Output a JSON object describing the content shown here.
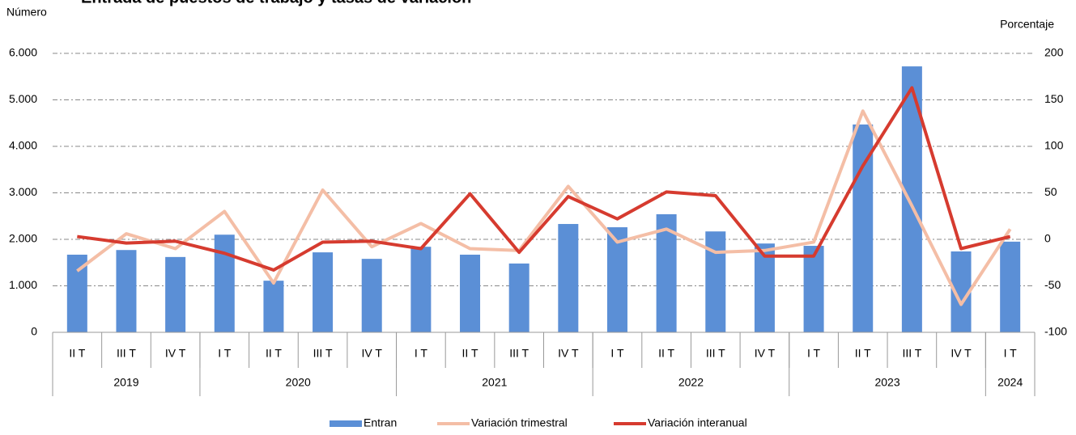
{
  "chart_data": {
    "type": "bar_line",
    "title": "Entrada de puestos de trabajo y tasas de variación",
    "y_label": "Número",
    "y2_label": "Porcentaje",
    "categories": [
      "II T",
      "III T",
      "IV T",
      "I T",
      "II T",
      "III T",
      "IV T",
      "I T",
      "II T",
      "III T",
      "IV T",
      "I T",
      "II T",
      "III T",
      "IV T",
      "I T",
      "II T",
      "III T",
      "IV T",
      "I T"
    ],
    "groups": [
      {
        "label": "2019",
        "count": 3
      },
      {
        "label": "2020",
        "count": 4
      },
      {
        "label": "2021",
        "count": 4
      },
      {
        "label": "2022",
        "count": 4
      },
      {
        "label": "2023",
        "count": 4
      },
      {
        "label": "2024",
        "count": 1
      }
    ],
    "series": [
      {
        "name": "Entran",
        "type": "bar",
        "color": "#5b8fd6",
        "values": [
          1670,
          1770,
          1620,
          2100,
          1110,
          1720,
          1580,
          1840,
          1670,
          1480,
          2330,
          2260,
          2540,
          2170,
          1910,
          1860,
          4470,
          5720,
          1740,
          1950
        ]
      },
      {
        "name": "Variación trimestral",
        "type": "line",
        "axis": "y2",
        "color": "#f4bea6",
        "values": [
          -34,
          6,
          -10,
          30,
          -47,
          53,
          -8,
          17,
          -10,
          -12,
          57,
          -3,
          11,
          -14,
          -12,
          -3,
          138,
          36,
          -70,
          11
        ]
      },
      {
        "name": "Variación interanual",
        "type": "line",
        "axis": "y2",
        "color": "#d63b2f",
        "values": [
          3,
          -4,
          -2,
          -15,
          -33,
          -3,
          -2,
          -10,
          49,
          -14,
          46,
          22,
          51,
          47,
          -18,
          -18,
          79,
          163,
          -10,
          3
        ]
      }
    ],
    "ylim": [
      0,
      6000
    ],
    "yticks": [
      0,
      {
        "value": 1000,
        "label": "1.000"
      },
      {
        "value": 2000,
        "label": "2.000"
      },
      {
        "value": 3000,
        "label": "3.000"
      },
      {
        "value": 4000,
        "label": "4.000"
      },
      {
        "value": 5000,
        "label": "5.000"
      },
      {
        "value": 6000,
        "label": "6.000"
      }
    ],
    "y2lim": [
      -100,
      200
    ],
    "y2ticks": [
      -100,
      -50,
      0,
      50,
      100,
      150,
      200
    ],
    "grid": true,
    "legend": "bottom"
  }
}
